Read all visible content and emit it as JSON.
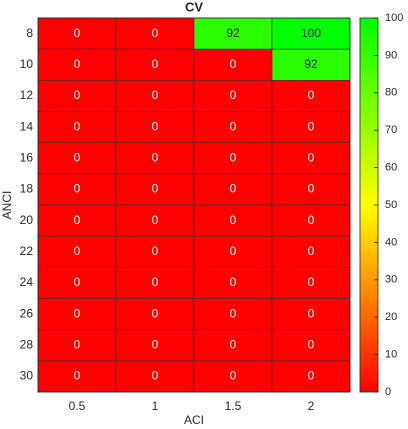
{
  "chart_data": {
    "type": "heatmap",
    "title": "CV",
    "x_label": "ACI",
    "y_label": "ANCI",
    "x_categories": [
      0.5,
      1,
      1.5,
      2
    ],
    "y_categories": [
      8,
      10,
      12,
      14,
      16,
      18,
      20,
      22,
      24,
      26,
      28,
      30
    ],
    "values": [
      [
        0,
        0,
        92,
        100
      ],
      [
        0,
        0,
        0,
        92
      ],
      [
        0,
        0,
        0,
        0
      ],
      [
        0,
        0,
        0,
        0
      ],
      [
        0,
        0,
        0,
        0
      ],
      [
        0,
        0,
        0,
        0
      ],
      [
        0,
        0,
        0,
        0
      ],
      [
        0,
        0,
        0,
        0
      ],
      [
        0,
        0,
        0,
        0
      ],
      [
        0,
        0,
        0,
        0
      ],
      [
        0,
        0,
        0,
        0
      ],
      [
        0,
        0,
        0,
        0
      ]
    ],
    "colormap": [
      "#ff0000",
      "#ffff00",
      "#00ff00"
    ],
    "clim": [
      0,
      100
    ],
    "cticks": [
      0,
      10,
      20,
      30,
      40,
      50,
      60,
      70,
      80,
      90,
      100
    ]
  }
}
